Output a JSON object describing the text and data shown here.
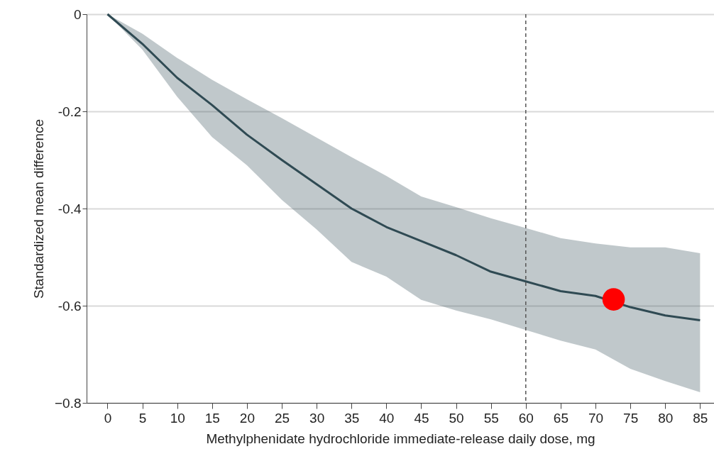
{
  "chart_data": {
    "type": "line",
    "xlabel": "Methylphenidate hydrochloride immediate-release daily dose, mg",
    "ylabel": "Standardized mean difference",
    "x": [
      0,
      5,
      10,
      15,
      20,
      25,
      30,
      35,
      40,
      45,
      50,
      55,
      60,
      65,
      70,
      75,
      80,
      85
    ],
    "series": [
      {
        "type": "line",
        "color": "#2f4a53",
        "values": [
          0,
          -0.061,
          -0.131,
          -0.187,
          -0.248,
          -0.3,
          -0.35,
          -0.4,
          -0.438,
          -0.467,
          -0.496,
          -0.53,
          -0.55,
          -0.57,
          -0.58,
          -0.603,
          -0.62,
          -0.63
        ],
        "lower": [
          0,
          -0.073,
          -0.17,
          -0.253,
          -0.311,
          -0.382,
          -0.443,
          -0.51,
          -0.54,
          -0.588,
          -0.61,
          -0.628,
          -0.65,
          -0.672,
          -0.69,
          -0.73,
          -0.755,
          -0.778
        ],
        "upper": [
          0,
          -0.04,
          -0.09,
          -0.135,
          -0.175,
          -0.214,
          -0.254,
          -0.294,
          -0.333,
          -0.375,
          -0.397,
          -0.42,
          -0.44,
          -0.461,
          -0.472,
          -0.48,
          -0.48,
          -0.492
        ]
      },
      {
        "type": "scatter",
        "color": "#ff0000",
        "x": [
          72.6
        ],
        "values": [
          -0.587
        ]
      }
    ],
    "xlim": [
      -3,
      87
    ],
    "xticks": [
      0,
      5,
      10,
      15,
      20,
      25,
      30,
      35,
      40,
      45,
      50,
      55,
      60,
      65,
      70,
      75,
      80,
      85
    ],
    "ylim": [
      -0.8,
      0
    ],
    "yticks": [
      0,
      -0.2,
      -0.4,
      {
        "value": -0.8,
        "label": "−0.8"
      },
      -0.6
    ],
    "ref_lines": [
      {
        "axis": "x",
        "value": 60,
        "line_style": "dashed",
        "color": "#555555"
      }
    ],
    "grid": "y",
    "line_style": "solid"
  }
}
